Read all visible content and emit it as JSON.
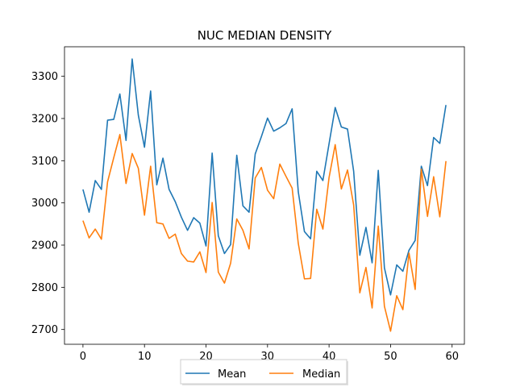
{
  "chart_data": {
    "type": "line",
    "title": "NUC MEDIAN DENSITY",
    "xlabel": "",
    "ylabel": "",
    "xlim": [
      -3,
      62
    ],
    "ylim": [
      2665,
      3370
    ],
    "xticks": [
      0,
      10,
      20,
      30,
      40,
      50,
      60
    ],
    "yticks": [
      2700,
      2800,
      2900,
      3000,
      3100,
      3200,
      3300
    ],
    "grid": false,
    "legend_position": "bottom-center",
    "x": [
      0,
      1,
      2,
      3,
      4,
      5,
      6,
      7,
      8,
      9,
      10,
      11,
      12,
      13,
      14,
      15,
      16,
      17,
      18,
      19,
      20,
      21,
      22,
      23,
      24,
      25,
      26,
      27,
      28,
      29,
      30,
      31,
      32,
      33,
      34,
      35,
      36,
      37,
      38,
      39,
      40,
      41,
      42,
      43,
      44,
      45,
      46,
      47,
      48,
      49,
      50,
      51,
      52,
      53,
      54,
      55,
      56,
      57,
      58,
      59
    ],
    "series": [
      {
        "name": "Mean",
        "color": "#1f77b4",
        "values": [
          3032,
          2978,
          3053,
          3032,
          3196,
          3198,
          3258,
          3148,
          3341,
          3208,
          3132,
          3265,
          3043,
          3106,
          3032,
          3003,
          2966,
          2935,
          2965,
          2952,
          2898,
          3118,
          2922,
          2880,
          2901,
          3113,
          2993,
          2978,
          3116,
          3157,
          3201,
          3170,
          3178,
          3188,
          3223,
          3026,
          2932,
          2915,
          3075,
          3053,
          3140,
          3226,
          3180,
          3175,
          3075,
          2876,
          2942,
          2858,
          3077,
          2846,
          2782,
          2853,
          2838,
          2888,
          2911,
          3087,
          3041,
          3155,
          3141,
          3232
        ]
      },
      {
        "name": "Median",
        "color": "#ff7f0e",
        "values": [
          2958,
          2917,
          2938,
          2914,
          3050,
          3107,
          3162,
          3046,
          3117,
          3082,
          2971,
          3087,
          2953,
          2950,
          2916,
          2926,
          2880,
          2862,
          2860,
          2884,
          2835,
          3001,
          2836,
          2810,
          2857,
          2962,
          2935,
          2891,
          3059,
          3084,
          3030,
          3010,
          3092,
          3063,
          3035,
          2904,
          2820,
          2821,
          2985,
          2938,
          3060,
          3138,
          3033,
          3078,
          2995,
          2787,
          2847,
          2751,
          2945,
          2755,
          2696,
          2780,
          2747,
          2881,
          2795,
          3080,
          2968,
          3062,
          2967,
          3099
        ]
      }
    ]
  }
}
